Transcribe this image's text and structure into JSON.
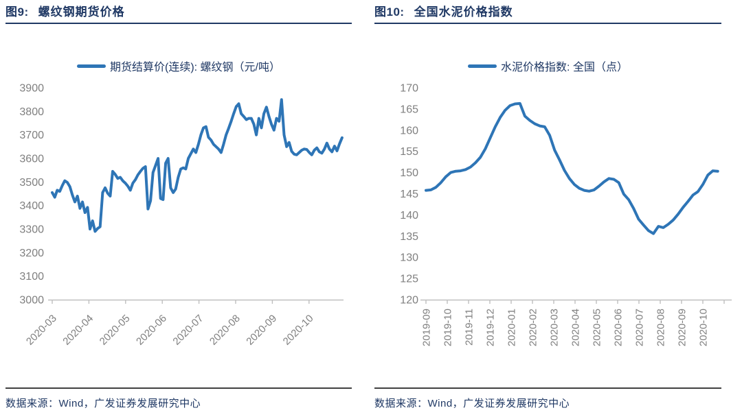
{
  "page": {
    "background": "#ffffff"
  },
  "colors": {
    "line": "#2E75B6",
    "axis_text": "#7F7F7F",
    "axis_line": "#BFBFBF",
    "title_text": "#1F3864",
    "title_rule": "#1F3864",
    "source_text": "#1F3864",
    "source_rule": "#404040"
  },
  "chart_data": [
    {
      "id": "rebar-futures",
      "type": "line",
      "fig_label": "图9:",
      "title": "螺纹钢期货价格",
      "legend": "期货结算价(连续): 螺纹钢（元/吨）",
      "source": "数据来源：Wind，广发证券发展研究中心",
      "ylim": [
        3000,
        3900
      ],
      "ytick_step": 100,
      "yticks": [
        3000,
        3100,
        3200,
        3300,
        3400,
        3500,
        3600,
        3700,
        3800,
        3900
      ],
      "xtick_labels": [
        "2020-03",
        "2020-04",
        "2020-05",
        "2020-06",
        "2020-07",
        "2020-08",
        "2020-09",
        "2020-10"
      ],
      "x_span_months": 7.9,
      "grid": false,
      "legend_position": "top-center",
      "values": [
        3455,
        3435,
        3465,
        3460,
        3485,
        3505,
        3498,
        3480,
        3445,
        3415,
        3440,
        3388,
        3415,
        3370,
        3392,
        3300,
        3335,
        3290,
        3302,
        3310,
        3455,
        3475,
        3452,
        3440,
        3545,
        3532,
        3515,
        3520,
        3505,
        3495,
        3482,
        3465,
        3495,
        3510,
        3530,
        3545,
        3558,
        3565,
        3385,
        3420,
        3540,
        3570,
        3600,
        3430,
        3425,
        3580,
        3600,
        3475,
        3455,
        3470,
        3520,
        3555,
        3560,
        3555,
        3600,
        3620,
        3640,
        3625,
        3660,
        3700,
        3730,
        3735,
        3690,
        3678,
        3660,
        3650,
        3640,
        3625,
        3660,
        3700,
        3728,
        3758,
        3790,
        3820,
        3832,
        3790,
        3778,
        3765,
        3770,
        3770,
        3745,
        3700,
        3770,
        3730,
        3790,
        3818,
        3778,
        3745,
        3720,
        3770,
        3758,
        3850,
        3700,
        3650,
        3668,
        3630,
        3618,
        3615,
        3625,
        3635,
        3640,
        3638,
        3625,
        3615,
        3635,
        3645,
        3628,
        3622,
        3640,
        3665,
        3640,
        3628,
        3652,
        3632,
        3662,
        3688
      ]
    },
    {
      "id": "cement-index",
      "type": "line",
      "fig_label": "图10:",
      "title": "全国水泥价格指数",
      "legend": "水泥价格指数: 全国（点）",
      "source": "数据来源：Wind，广发证券发展研究中心",
      "ylim": [
        120,
        170
      ],
      "ytick_step": 5,
      "yticks": [
        120,
        125,
        130,
        135,
        140,
        145,
        150,
        155,
        160,
        165,
        170
      ],
      "xtick_labels": [
        "2019-09",
        "2019-10",
        "2019-11",
        "2019-12",
        "2020-01",
        "2020-02",
        "2020-03",
        "2020-04",
        "2020-05",
        "2020-06",
        "2020-07",
        "2020-08",
        "2020-09",
        "2020-10"
      ],
      "x_span_months": 13.7,
      "grid": false,
      "legend_position": "top-center",
      "values": [
        145.8,
        145.9,
        146.5,
        147.6,
        149.0,
        150.0,
        150.3,
        150.4,
        150.7,
        151.3,
        152.3,
        153.6,
        155.6,
        158.2,
        160.8,
        163.0,
        164.7,
        165.8,
        166.2,
        166.3,
        163.3,
        162.3,
        161.5,
        161.0,
        160.8,
        158.8,
        155.3,
        153.0,
        150.5,
        148.6,
        147.2,
        146.3,
        145.8,
        145.6,
        145.9,
        146.8,
        147.8,
        148.6,
        148.4,
        147.6,
        144.9,
        143.6,
        141.5,
        139.0,
        137.6,
        136.3,
        135.6,
        137.3,
        137.0,
        137.8,
        138.8,
        140.2,
        141.8,
        143.2,
        144.7,
        145.5,
        147.2,
        149.4,
        150.4,
        150.3
      ]
    }
  ]
}
